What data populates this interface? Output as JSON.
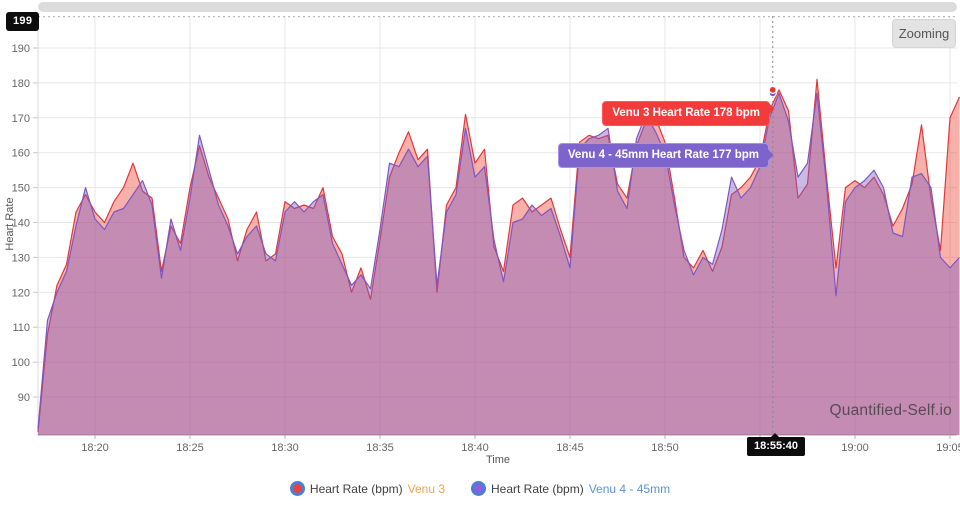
{
  "header": {
    "zoom_button_label": "Zooming"
  },
  "watermark": "Quantified-Self.io",
  "crosshair": {
    "time_label": "18:55:40",
    "y_max_label": "199",
    "tooltips": [
      {
        "series": "Venu 3",
        "text": "Venu 3 Heart Rate 178 bpm",
        "bg_color": "#f23c3c"
      },
      {
        "series": "Venu 4 - 45mm",
        "text": "Venu 4 - 45mm Heart Rate 177 bpm",
        "bg_color": "#7d64cc"
      }
    ]
  },
  "legend": {
    "items": [
      {
        "label": "Heart Rate (bpm)",
        "series_name": "Venu 3",
        "swatch_color": "#e8433f",
        "ring_color": "#4a7fd4",
        "name_color": "#f0a24f"
      },
      {
        "label": "Heart Rate (bpm)",
        "series_name": "Venu 4 - 45mm",
        "swatch_color": "#8a5fe0",
        "ring_color": "#4a7fd4",
        "name_color": "#5c93d6"
      }
    ]
  },
  "chart_data": {
    "type": "area",
    "title": "",
    "xlabel": "Time",
    "ylabel": "Heart Rate",
    "x_ticks": [
      "18:20",
      "18:25",
      "18:30",
      "18:35",
      "18:40",
      "18:45",
      "18:50",
      "18:55",
      "19:00",
      "19:05"
    ],
    "x_tick_minutes_after_start": [
      3,
      8,
      13,
      18,
      23,
      28,
      33,
      38,
      43,
      48
    ],
    "y_ticks": [
      90,
      100,
      110,
      120,
      130,
      140,
      150,
      160,
      170,
      180,
      190
    ],
    "y_max_annotation": 199,
    "ylim": [
      79,
      199
    ],
    "grid": true,
    "legend_position": "bottom",
    "start_time": "18:17:00",
    "end_time": "19:05:30",
    "sample_interval_seconds": 30,
    "crosshair": {
      "time": "18:55:40",
      "minutes_after_start": 38.67
    },
    "series": [
      {
        "name": "Heart Rate (bpm) Venu 3",
        "device": "Venu 3",
        "line_color": "#e0393c",
        "fill_color": "rgba(238,80,66,0.45)",
        "crosshair_value": 178,
        "values": [
          80,
          108,
          122,
          128,
          143,
          148,
          143,
          140,
          146,
          150,
          157,
          149,
          147,
          126,
          139,
          134,
          150,
          162,
          153,
          147,
          141,
          129,
          138,
          143,
          129,
          131,
          146,
          144,
          145,
          144,
          150,
          136,
          131,
          120,
          127,
          118,
          135,
          153,
          160,
          166,
          158,
          161,
          120,
          145,
          150,
          171,
          157,
          161,
          133,
          126,
          145,
          147,
          143,
          145,
          147,
          138,
          130,
          163,
          165,
          164,
          165,
          151,
          147,
          162,
          169,
          170,
          163,
          147,
          130,
          127,
          132,
          126,
          133,
          148,
          150,
          153,
          158,
          172,
          178,
          172,
          147,
          151,
          181,
          153,
          127,
          150,
          152,
          150,
          153,
          148,
          139,
          144,
          151,
          168,
          147,
          132,
          170,
          176
        ]
      },
      {
        "name": "Heart Rate (bpm) Venu 4 - 45mm",
        "device": "Venu 4 - 45mm",
        "line_color": "#7e57c2",
        "fill_color": "rgba(126,87,194,0.42)",
        "crosshair_value": 177,
        "values": [
          81,
          112,
          120,
          126,
          139,
          150,
          141,
          138,
          143,
          144,
          148,
          152,
          145,
          124,
          141,
          132,
          147,
          165,
          155,
          145,
          139,
          131,
          136,
          139,
          131,
          129,
          143,
          146,
          143,
          146,
          148,
          134,
          128,
          122,
          125,
          121,
          138,
          157,
          156,
          161,
          156,
          159,
          122,
          143,
          148,
          167,
          153,
          156,
          135,
          123,
          140,
          141,
          145,
          142,
          144,
          136,
          127,
          161,
          164,
          165,
          167,
          149,
          144,
          164,
          171,
          166,
          160,
          145,
          132,
          125,
          130,
          128,
          138,
          153,
          147,
          150,
          156,
          170,
          177,
          169,
          153,
          157,
          177,
          151,
          119,
          146,
          150,
          152,
          155,
          150,
          137,
          136,
          153,
          154,
          150,
          130,
          127,
          130
        ]
      }
    ]
  }
}
